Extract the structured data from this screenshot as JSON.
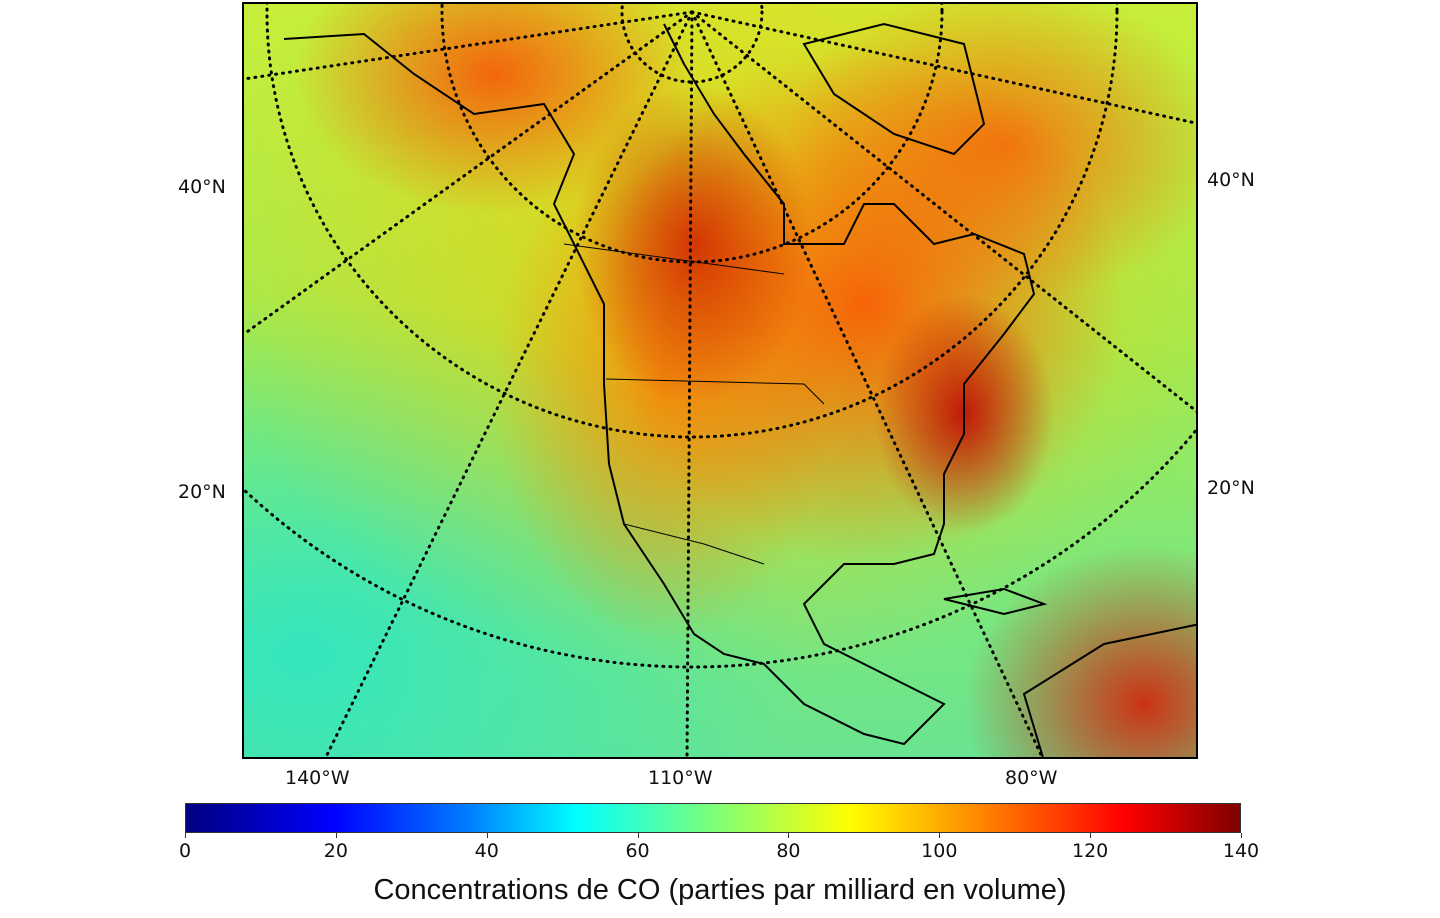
{
  "map": {
    "projection": "polar-stereographic",
    "lat_labels_left": [
      "40°N",
      "20°N"
    ],
    "lat_labels_right": [
      "40°N",
      "20°N"
    ],
    "lon_labels": [
      "140°W",
      "110°W",
      "80°W"
    ],
    "graticule_style": "dotted black",
    "coastline_color": "#000000"
  },
  "colorbar": {
    "colormap": "jet",
    "min": 0,
    "max": 140,
    "ticks": [
      "0",
      "20",
      "40",
      "60",
      "80",
      "100",
      "120",
      "140"
    ],
    "label": "Concentrations de CO (parties par milliard en volume)"
  }
}
